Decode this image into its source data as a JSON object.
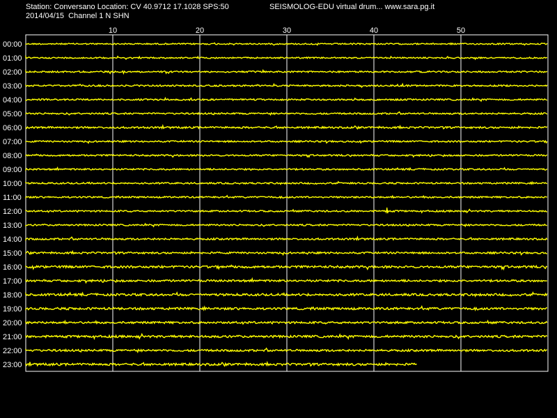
{
  "header": {
    "station_line": "Station: Conversano Location: CV 40.9712 17.1028 SPS:50",
    "date_line": "2014/04/15  Channel 1 N SHN",
    "title": "SEISMOLOG-EDU virtual drum... www.sara.pg.it"
  },
  "colors": {
    "background": "#000000",
    "trace": "#ffff00",
    "grid": "#ffffff",
    "text": "#ffffff"
  },
  "chart_data": {
    "type": "line",
    "xlim": [
      0,
      60
    ],
    "x_ticks": [
      10,
      20,
      30,
      40,
      50
    ],
    "grid": "vertical",
    "rows": [
      "00:00",
      "01:00",
      "02:00",
      "03:00",
      "04:00",
      "05:00",
      "06:00",
      "07:00",
      "08:00",
      "09:00",
      "10:00",
      "11:00",
      "12:00",
      "13:00",
      "14:00",
      "15:00",
      "16:00",
      "17:00",
      "18:00",
      "19:00",
      "20:00",
      "21:00",
      "22:00",
      "23:00"
    ],
    "row_end_minute": [
      60,
      60,
      60,
      60,
      60,
      60,
      60,
      60,
      60,
      60,
      60,
      60,
      60,
      60,
      60,
      60,
      60,
      60,
      60,
      60,
      60,
      60,
      60,
      45
    ],
    "noise_level": [
      0.6,
      0.6,
      0.7,
      0.7,
      0.7,
      0.7,
      0.8,
      0.7,
      0.7,
      0.7,
      0.7,
      0.7,
      0.7,
      0.7,
      0.8,
      0.8,
      1.0,
      0.9,
      1.0,
      1.0,
      0.9,
      1.0,
      0.9,
      1.0
    ],
    "events": [
      {
        "row": "12:00",
        "minute": 41.5,
        "amplitude": 2.5
      }
    ]
  }
}
